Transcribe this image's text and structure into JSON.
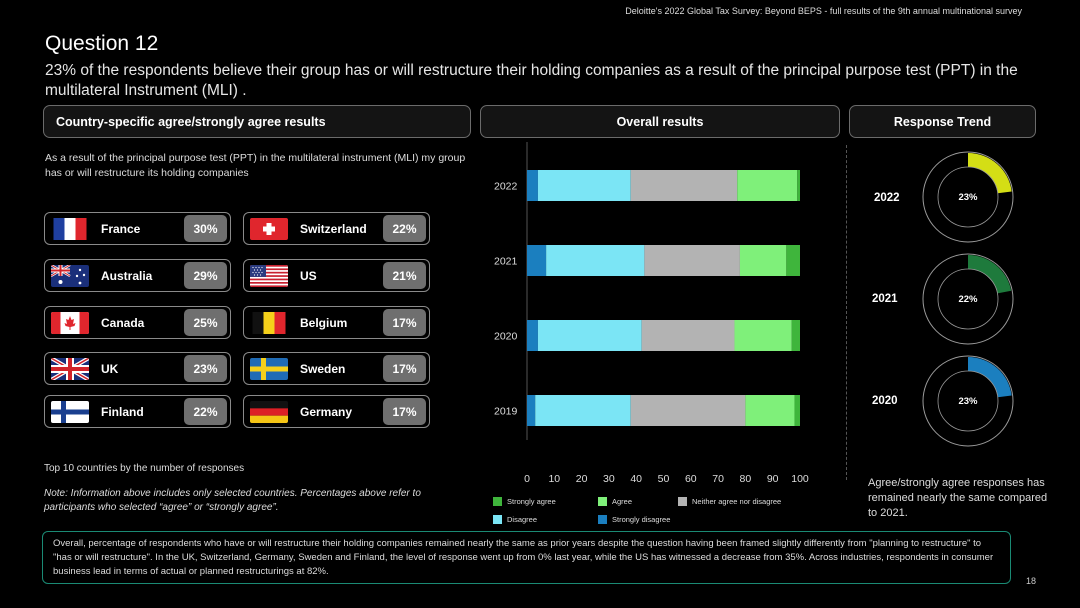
{
  "header": {
    "caption": "Deloitte's 2022 Global Tax Survey: Beyond BEPS  - full results of the 9th annual multinational survey",
    "title": "Question 12",
    "subtitle": "23% of the respondents believe their group has or will restructure their holding companies as a result of the principal purpose test (PPT) in the multilateral Instrument (MLI) ."
  },
  "panels": {
    "country": "Country-specific agree/strongly agree results",
    "overall": "Overall results",
    "trend": "Response Trend"
  },
  "country_section": {
    "description": "As a result of the principal purpose test (PPT) in the multilateral instrument (MLI) my group has or will restructure its holding companies",
    "countries": [
      {
        "name": "France",
        "pct": "30%",
        "flag": "france-flag-icon"
      },
      {
        "name": "Switzerland",
        "pct": "22%",
        "flag": "switzerland-flag-icon"
      },
      {
        "name": "Australia",
        "pct": "29%",
        "flag": "australia-flag-icon"
      },
      {
        "name": "US",
        "pct": "21%",
        "flag": "us-flag-icon"
      },
      {
        "name": "Canada",
        "pct": "25%",
        "flag": "canada-flag-icon"
      },
      {
        "name": "Belgium",
        "pct": "17%",
        "flag": "belgium-flag-icon"
      },
      {
        "name": "UK",
        "pct": "23%",
        "flag": "uk-flag-icon"
      },
      {
        "name": "Sweden",
        "pct": "17%",
        "flag": "sweden-flag-icon"
      },
      {
        "name": "Finland",
        "pct": "22%",
        "flag": "finland-flag-icon"
      },
      {
        "name": "Germany",
        "pct": "17%",
        "flag": "germany-flag-icon"
      }
    ],
    "top10_note": "Top 10 countries by the number of responses",
    "note": "Note: Information above includes only selected countries. Percentages above refer to participants who selected “agree” or “strongly agree”."
  },
  "chart_data": [
    {
      "type": "bar",
      "orientation": "horizontal",
      "stacked": true,
      "categories": [
        "2022",
        "2021",
        "2020",
        "2019"
      ],
      "xlim": [
        0,
        100
      ],
      "xticks": [
        "0",
        "10",
        "20",
        "30",
        "40",
        "50",
        "60",
        "70",
        "80",
        "90",
        "100"
      ],
      "legend_position": "bottom",
      "series": [
        {
          "name": "Strongly disagree",
          "color": "#1b7fbf",
          "values": [
            4,
            7,
            4,
            3
          ]
        },
        {
          "name": "Disagree",
          "color": "#7be5f5",
          "values": [
            34,
            36,
            38,
            35
          ]
        },
        {
          "name": "Neither agree nor disagree",
          "color": "#b3b3b3",
          "values": [
            39,
            35,
            34,
            42
          ]
        },
        {
          "name": "Agree",
          "color": "#7ff07a",
          "values": [
            22,
            17,
            21,
            18
          ]
        },
        {
          "name": "Strongly agree",
          "color": "#3fb53c",
          "values": [
            1,
            5,
            3,
            2
          ]
        }
      ],
      "legend_order": [
        "Strongly agree",
        "Agree",
        "Neither agree nor disagree",
        "Disagree",
        "Strongly disagree"
      ]
    },
    {
      "type": "pie",
      "style": "donut-wedge",
      "items": [
        {
          "year": "2022",
          "label": "23%",
          "value": 23,
          "color": "#d4de15"
        },
        {
          "year": "2021",
          "label": "22%",
          "value": 22,
          "color": "#1e7a3c"
        },
        {
          "year": "2020",
          "label": "23%",
          "value": 23,
          "color": "#1b7fbf"
        }
      ]
    }
  ],
  "trend_note": "Agree/strongly agree responses has remained nearly the same compared to 2021.",
  "footer": {
    "summary": "Overall, percentage of respondents who have or will restructure their holding companies remained nearly the same as prior years despite the question having been framed slightly differently from \"planning to restructure\" to \"has or will restructure\". In the UK, Switzerland, Germany, Sweden and Finland, the level of response went up from 0% last year, while the US has witnessed a decrease from 35%. Across industries, respondents in consumer business lead in terms of actual or planned restructurings at 82%.",
    "page": "18"
  }
}
